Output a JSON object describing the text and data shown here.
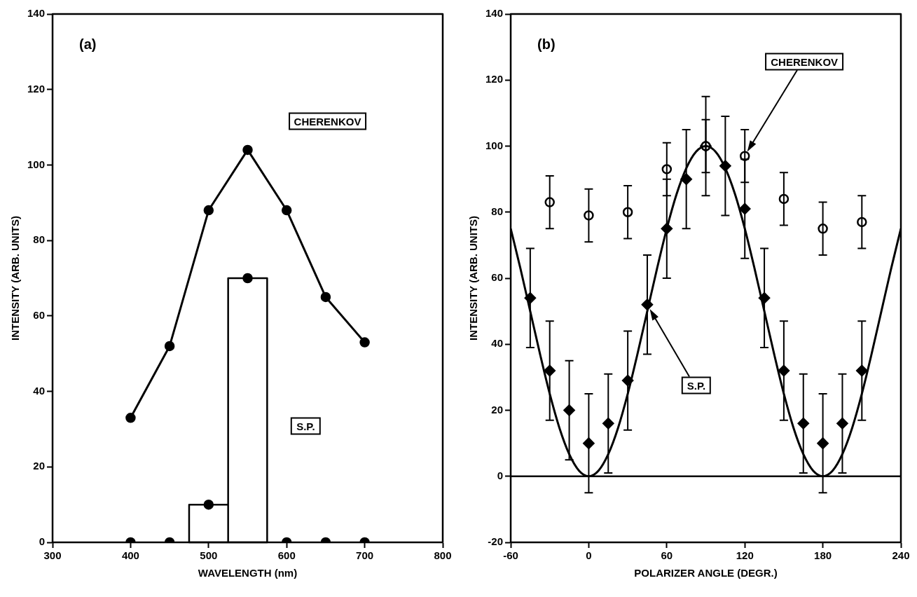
{
  "chart_data": [
    {
      "type": "line",
      "title": "(a)",
      "xlabel": "WAVELENGTH (nm)",
      "ylabel": "INTENSITY (ARB. UNITS)",
      "xlim": [
        300,
        800
      ],
      "xticks": [
        300,
        400,
        500,
        600,
        700,
        800
      ],
      "ylim": [
        0,
        140
      ],
      "yticks": [
        0,
        20,
        40,
        60,
        80,
        100,
        120,
        140
      ],
      "grid": false,
      "legend": false,
      "series": [
        {
          "name": "CHERENKOV",
          "color": "#000000",
          "marker": "circle",
          "x": [
            400,
            450,
            500,
            550,
            600,
            650,
            700
          ],
          "values": [
            33,
            52,
            88,
            104,
            88,
            65,
            53
          ]
        },
        {
          "name": "S.P.",
          "type": "histogram",
          "color": "#000000",
          "bins": [
            475,
            525,
            575
          ],
          "values": [
            10,
            70
          ]
        },
        {
          "type": "scatter",
          "color": "#000000",
          "marker": "circle",
          "x": [
            400,
            450,
            500,
            550,
            600,
            650,
            700
          ],
          "values": [
            0,
            0,
            10,
            70,
            0,
            0,
            0
          ]
        }
      ]
    },
    {
      "type": "scatter",
      "title": "(b)",
      "xlabel": "POLARIZER ANGLE (DEGR.)",
      "ylabel": "INTENSITY (ARB. UNITS)",
      "xlim": [
        -60,
        240
      ],
      "xticks": [
        -60,
        0,
        60,
        120,
        180,
        240
      ],
      "ylim": [
        -20,
        140
      ],
      "yticks": [
        -20,
        0,
        20,
        40,
        60,
        80,
        100,
        120,
        140
      ],
      "grid": false,
      "legend": false,
      "ref_lines": [
        {
          "axis": "y",
          "value": 0,
          "color": "#000000",
          "line_style": "solid"
        }
      ],
      "series": [
        {
          "type": "line",
          "color": "#000000",
          "marker": "none",
          "x": [
            -60,
            -52.5,
            -45,
            -37.5,
            -30,
            -22.5,
            -15,
            -7.5,
            0,
            7.5,
            15,
            22.5,
            30,
            37.5,
            45,
            52.5,
            60,
            67.5,
            75,
            82.5,
            90,
            97.5,
            105,
            112.5,
            120,
            127.5,
            135,
            142.5,
            150,
            157.5,
            165,
            172.5,
            180,
            187.5,
            195,
            202.5,
            210,
            217.5,
            225,
            232.5,
            240
          ],
          "values": [
            75,
            62.9,
            50,
            37.1,
            25,
            14.6,
            6.7,
            1.7,
            0,
            1.7,
            6.7,
            14.6,
            25,
            37.1,
            50,
            62.9,
            75,
            85.4,
            93.3,
            98.3,
            100,
            98.3,
            93.3,
            85.4,
            75,
            62.9,
            50,
            37.1,
            25,
            14.6,
            6.7,
            1.7,
            0,
            1.7,
            6.7,
            14.6,
            25,
            37.1,
            50,
            62.9,
            75
          ]
        },
        {
          "name": "CHERENKOV",
          "color": "#ffffff",
          "marker": "circle",
          "x": [
            -30,
            0,
            30,
            60,
            90,
            120,
            150,
            180,
            210
          ],
          "values": [
            83,
            79,
            80,
            93,
            100,
            97,
            84,
            75,
            77
          ],
          "errors": [
            8,
            8,
            8,
            8,
            8,
            8,
            8,
            8,
            8
          ]
        },
        {
          "name": "S.P.",
          "color": "#000000",
          "marker": "diamond",
          "x": [
            -45,
            -30,
            -15,
            0,
            15,
            30,
            45,
            60,
            75,
            90,
            105,
            120,
            135,
            150,
            165,
            180,
            195,
            210
          ],
          "values": [
            54,
            32,
            20,
            10,
            16,
            29,
            52,
            75,
            90,
            100,
            94,
            81,
            54,
            32,
            16,
            10,
            16,
            32
          ],
          "errors": [
            15,
            15,
            15,
            15,
            15,
            15,
            15,
            15,
            15,
            15,
            15,
            15,
            15,
            15,
            15,
            15,
            15,
            15
          ]
        }
      ]
    }
  ]
}
